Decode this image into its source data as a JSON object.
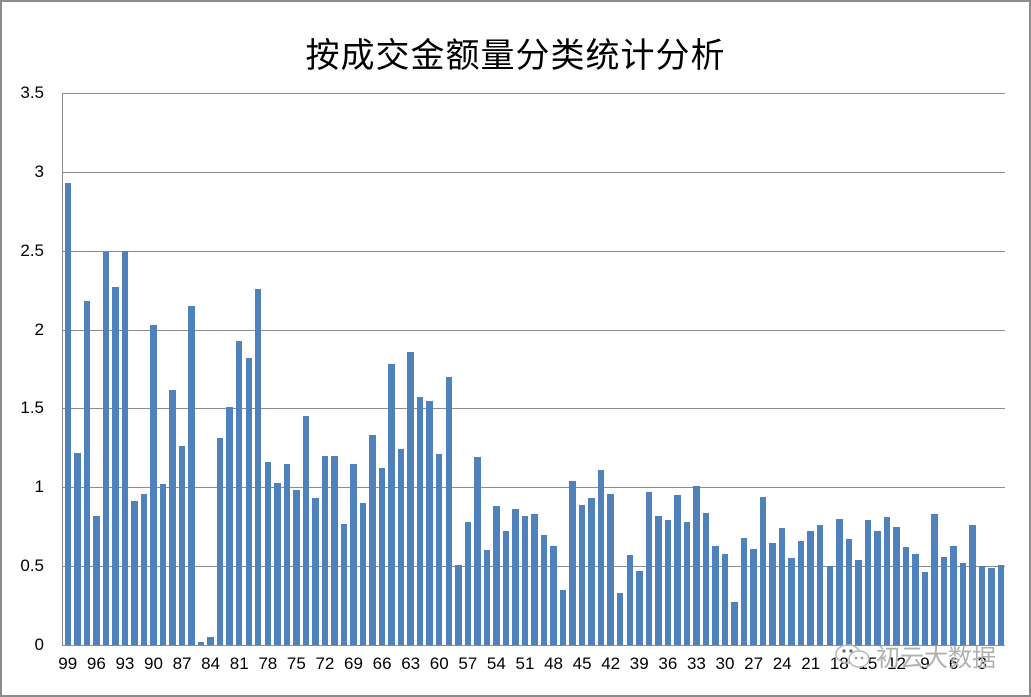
{
  "chart_data": {
    "type": "bar",
    "title": "按成交金额量分类统计分析",
    "xlabel": "",
    "ylabel": "",
    "ylim": [
      0,
      3.5
    ],
    "yticks": [
      "0",
      "0.5",
      "1",
      "1.5",
      "2",
      "2.5",
      "3",
      "3.5"
    ],
    "grid": true,
    "legend": "none",
    "color": "#4f81bd",
    "categories": [
      99,
      98,
      97,
      96,
      95,
      94,
      93,
      92,
      91,
      90,
      89,
      88,
      87,
      86,
      85,
      84,
      83,
      82,
      81,
      80,
      79,
      78,
      77,
      76,
      75,
      74,
      73,
      72,
      71,
      70,
      69,
      68,
      67,
      66,
      65,
      64,
      63,
      62,
      61,
      60,
      59,
      58,
      57,
      56,
      55,
      54,
      53,
      52,
      51,
      50,
      49,
      48,
      47,
      46,
      45,
      44,
      43,
      42,
      41,
      40,
      39,
      38,
      37,
      36,
      35,
      34,
      33,
      32,
      31,
      30,
      29,
      28,
      27,
      26,
      25,
      24,
      23,
      22,
      21,
      20,
      19,
      18,
      17,
      16,
      15,
      14,
      13,
      12,
      11,
      10,
      9,
      8,
      7,
      6,
      5,
      4,
      3,
      2,
      1
    ],
    "shown_xtick_labels": [
      "99",
      "96",
      "93",
      "90",
      "87",
      "84",
      "81",
      "78",
      "75",
      "72",
      "69",
      "66",
      "63",
      "60",
      "57",
      "54",
      "51",
      "48",
      "45",
      "42",
      "39",
      "36",
      "33",
      "30",
      "27",
      "24",
      "21",
      "18",
      "15",
      "12",
      "9",
      "6",
      "3"
    ],
    "values": [
      2.93,
      1.22,
      2.18,
      0.82,
      2.49,
      2.27,
      2.5,
      0.91,
      0.96,
      2.03,
      1.02,
      1.62,
      1.26,
      2.15,
      0.02,
      0.05,
      1.31,
      1.51,
      1.93,
      1.82,
      2.26,
      1.16,
      1.03,
      1.15,
      0.98,
      1.45,
      0.93,
      1.2,
      1.2,
      0.77,
      1.15,
      0.9,
      1.33,
      1.12,
      1.78,
      1.24,
      1.86,
      1.57,
      1.55,
      1.21,
      1.7,
      0.51,
      0.78,
      1.19,
      0.6,
      0.88,
      0.72,
      0.86,
      0.82,
      0.83,
      0.7,
      0.63,
      0.35,
      1.04,
      0.89,
      0.93,
      1.11,
      0.96,
      0.33,
      0.57,
      0.47,
      0.97,
      0.82,
      0.79,
      0.95,
      0.78,
      1.01,
      0.84,
      0.63,
      0.58,
      0.27,
      0.68,
      0.61,
      0.94,
      0.65,
      0.74,
      0.55,
      0.66,
      0.72,
      0.76,
      0.5,
      0.8,
      0.67,
      0.54,
      0.79,
      0.72,
      0.81,
      0.75,
      0.62,
      0.58,
      0.46,
      0.83,
      0.56,
      0.63,
      0.52,
      0.76,
      0.5,
      0.49,
      0.51
    ]
  },
  "watermark": {
    "text": "初云大数据",
    "icon": "wechat-icon"
  }
}
